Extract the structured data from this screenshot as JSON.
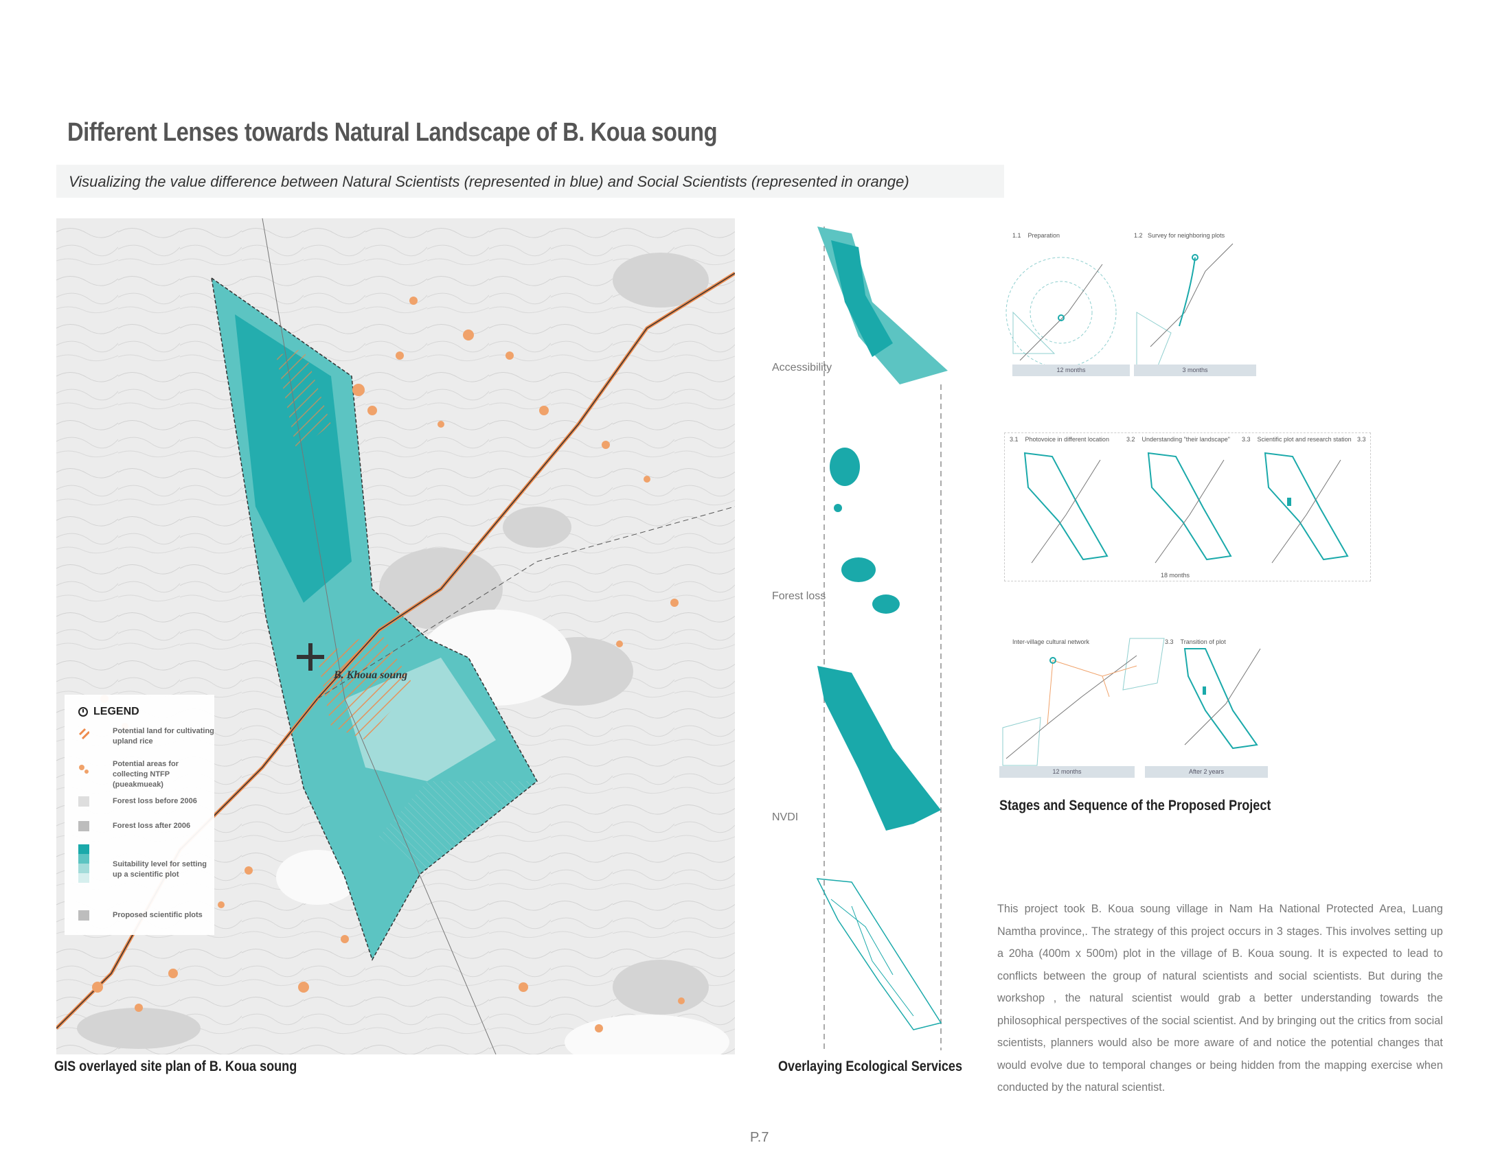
{
  "header": {
    "title": "Different Lenses towards Natural Landscape of B. Koua soung",
    "subtitle": "Visualizing the value difference between Natural Scientists (represented in blue) and Social Scientists (represented in orange)"
  },
  "map": {
    "village_label": "B. Khoua soung",
    "caption": "GIS overlayed site plan of B. Koua soung",
    "legend": {
      "title": "LEGEND",
      "items": [
        {
          "label": "Potential land for cultivating upland rice",
          "color": "#ee8a4c"
        },
        {
          "label": "Potential areas for collecting NTFP (pueakmueak)",
          "color": "#f0a26a"
        },
        {
          "label": "Forest loss before 2006",
          "color": "#dedede"
        },
        {
          "label": "Forest loss after 2006",
          "color": "#bdbdbd"
        },
        {
          "label": "Suitability level for setting up a scientific plot",
          "colors": [
            "#1aa9aa",
            "#5cc4c2",
            "#a3dcda",
            "#d6efee"
          ]
        },
        {
          "label": "Proposed scientific plots",
          "color": "#bdbdbd"
        }
      ]
    }
  },
  "overlays": {
    "labels": [
      "Accessibility",
      "Forest loss",
      "NVDI"
    ],
    "caption": "Overlaying Ecological Services"
  },
  "stages": {
    "row1": [
      {
        "num": "1.1",
        "title": "Preparation",
        "duration": "12 months"
      },
      {
        "num": "1.2",
        "title": "Survey for neighboring plots",
        "duration": "3 months"
      }
    ],
    "row2": [
      {
        "num": "3.1",
        "title": "Photovoice in different location"
      },
      {
        "num": "3.2",
        "title": "Understanding \"their landscape\""
      },
      {
        "num": "3.3",
        "title": "Scientific plot and research station"
      },
      {
        "num": "3.3",
        "title": ""
      }
    ],
    "row2_duration": "18 months",
    "row3": [
      {
        "num": "",
        "title": "Inter-village cultural network",
        "duration": "12 months"
      },
      {
        "num": "3.3",
        "title": "Transition of plot",
        "duration": "After 2 years"
      }
    ],
    "caption": "Stages and Sequence of the Proposed Project"
  },
  "description": "This project took B. Koua soung village in Nam Ha National Protected Area, Luang Namtha province,. The strategy of this project occurs in 3 stages. This involves setting up a 20ha (400m x 500m) plot in the village of B. Koua soung. It is expected to lead to conflicts between the group of natural scientists and social scientists. But during the workshop , the natural scientist would grab a better understanding towards the philosophical perspectives of the social scientist. And by bringing out the critics from social scientists, planners would also be more aware of and notice the potential changes that would evolve due to temporal changes or being hidden from the mapping exercise when conducted by the natural scientist.",
  "page_number": "P.7",
  "colors": {
    "teal": "#1aa9aa",
    "orange": "#ee8a4c",
    "grey": "#bdbdbd"
  }
}
